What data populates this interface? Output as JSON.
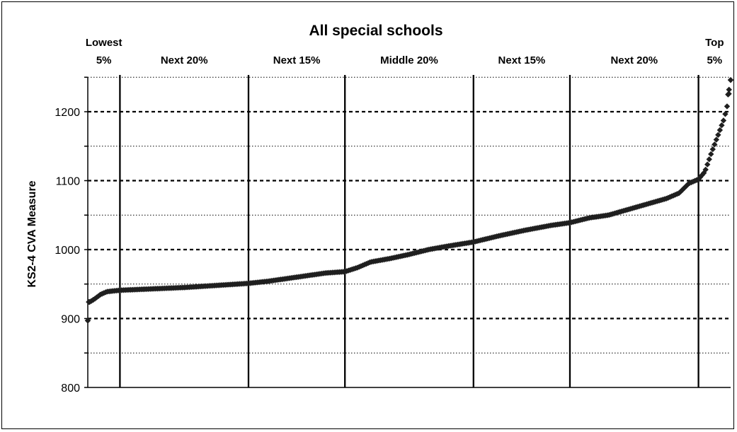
{
  "chart_data": {
    "type": "scatter",
    "title": "All special schools",
    "xlabel": "",
    "ylabel": "KS2-4 CVA Measure",
    "ylim": [
      800,
      1250
    ],
    "yticks": [
      800,
      900,
      1000,
      1100,
      1200
    ],
    "grid": "horizontal dashed lines at 900, 1000, 1100, 1200; dotted lines at 850, 950, 1050, 1150",
    "marker_color": "#1f1f1f",
    "bands": [
      {
        "label_lines": [
          "Lowest",
          "5%"
        ],
        "start_pct": 0,
        "end_pct": 5
      },
      {
        "label_lines": [
          "Next 20%"
        ],
        "start_pct": 5,
        "end_pct": 25
      },
      {
        "label_lines": [
          "Next 15%"
        ],
        "start_pct": 25,
        "end_pct": 40
      },
      {
        "label_lines": [
          "Middle 20%"
        ],
        "start_pct": 40,
        "end_pct": 60
      },
      {
        "label_lines": [
          "Next 15%"
        ],
        "start_pct": 60,
        "end_pct": 75
      },
      {
        "label_lines": [
          "Next 20%"
        ],
        "start_pct": 75,
        "end_pct": 95
      },
      {
        "label_lines": [
          "Top",
          "5%"
        ],
        "start_pct": 95,
        "end_pct": 100
      }
    ],
    "x_unit": "percentile rank of school",
    "curve": [
      [
        0,
        897
      ],
      [
        0.3,
        924
      ],
      [
        1.0,
        928
      ],
      [
        2.0,
        935
      ],
      [
        3.0,
        939
      ],
      [
        5.0,
        941
      ],
      [
        10,
        943
      ],
      [
        15,
        945
      ],
      [
        20,
        948
      ],
      [
        25,
        951
      ],
      [
        28,
        954
      ],
      [
        31,
        958
      ],
      [
        34,
        962
      ],
      [
        37,
        966
      ],
      [
        40,
        968
      ],
      [
        42,
        974
      ],
      [
        44,
        982
      ],
      [
        47,
        987
      ],
      [
        50,
        993
      ],
      [
        53,
        1000
      ],
      [
        56,
        1005
      ],
      [
        60,
        1011
      ],
      [
        64,
        1020
      ],
      [
        68,
        1028
      ],
      [
        72,
        1035
      ],
      [
        75,
        1039
      ],
      [
        78,
        1046
      ],
      [
        81,
        1050
      ],
      [
        84,
        1058
      ],
      [
        87,
        1066
      ],
      [
        90,
        1074
      ],
      [
        92,
        1082
      ],
      [
        93.5,
        1096
      ],
      [
        95,
        1102
      ],
      [
        96,
        1113
      ],
      [
        97,
        1140
      ],
      [
        98,
        1165
      ],
      [
        99,
        1190
      ],
      [
        99.5,
        1210
      ],
      [
        100,
        1246
      ]
    ]
  }
}
